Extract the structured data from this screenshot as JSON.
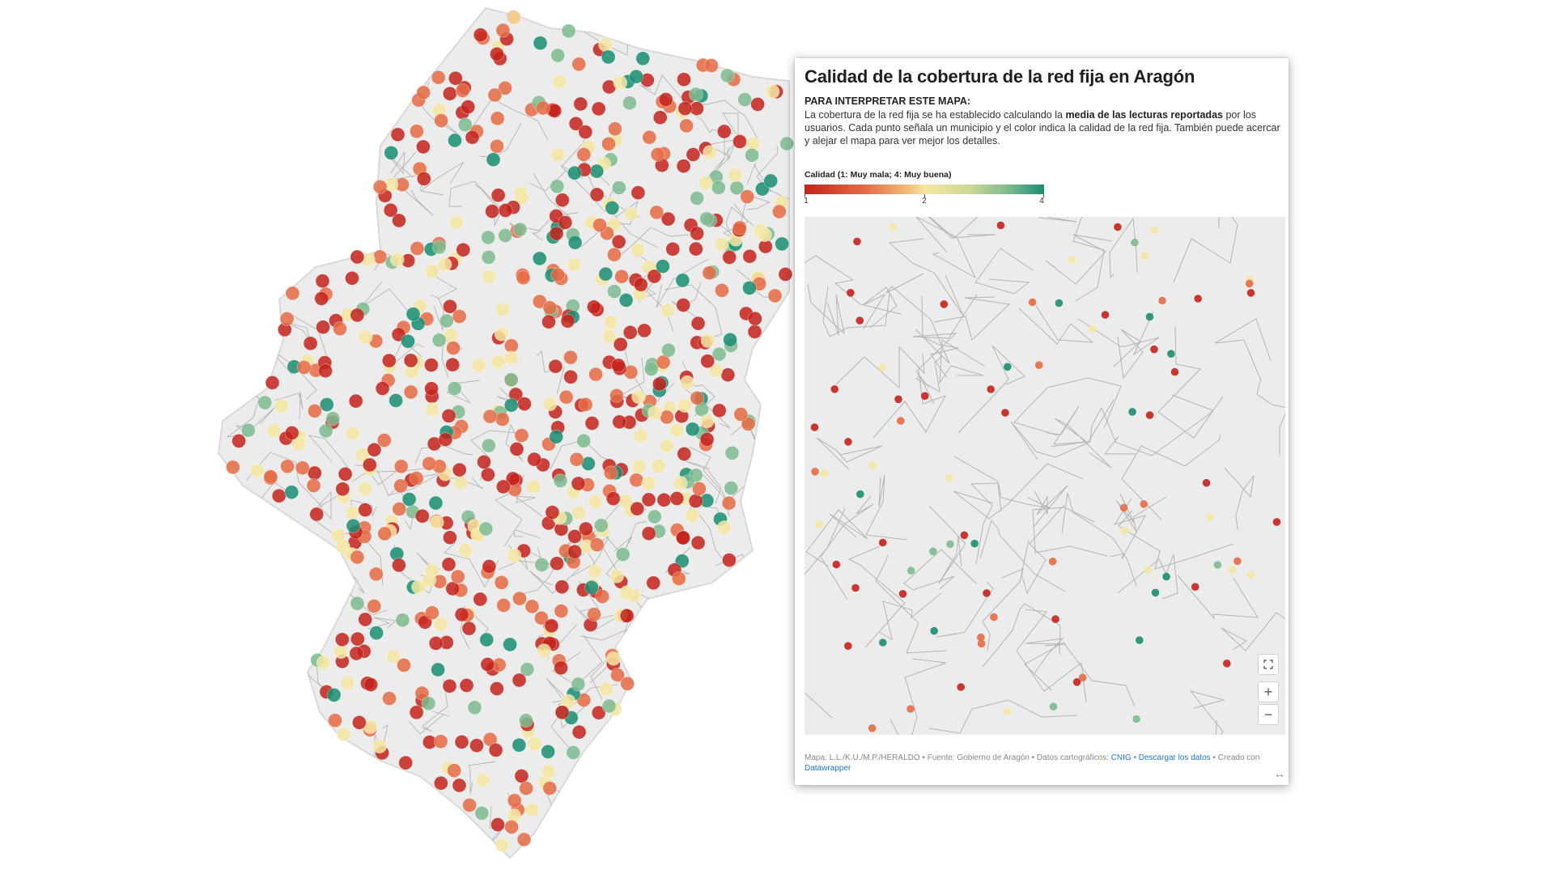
{
  "card": {
    "title": "Calidad de la cobertura de la red fija en Aragón",
    "intro_heading": "PARA INTERPRETAR ESTE MAPA:",
    "intro_before": "La cobertura de la red fija se ha establecido calculando la ",
    "intro_bold": "media de las lecturas reportadas",
    "intro_after": " por los usuarios. Cada punto señala un municipio y el color indica la calidad de la red fija. También puede acercar y alejar el mapa para ver mejor los detalles.",
    "legend_title": "Calidad (1: Muy mala; 4: Muy buena)",
    "legend_ticks": [
      "1",
      "2",
      "4"
    ],
    "legend_min": 1,
    "legend_max": 4,
    "footer_prefix": "Mapa: L.L./K.U./M.P./HERALDO • Fuente: Gobierno de Aragón • Datos cartográficos: ",
    "footer_link_cnig": "CNIG",
    "footer_sep": " • ",
    "footer_link_download": "Descargar los datos",
    "footer_mid": " • Creado con ",
    "footer_link_dw": "Datawrapper"
  },
  "controls": {
    "fullscreen_icon": "fullscreen-icon",
    "zoom_in": "+",
    "zoom_out": "−",
    "resize_icon": "↔"
  },
  "colors": {
    "very_bad": "#c4221b",
    "bad": "#e56b45",
    "medium": "#f6e6a3",
    "good": "#7dbb8e",
    "very_good": "#198e73",
    "region_fill": "#ececec",
    "border": "#b4b4b4"
  }
}
